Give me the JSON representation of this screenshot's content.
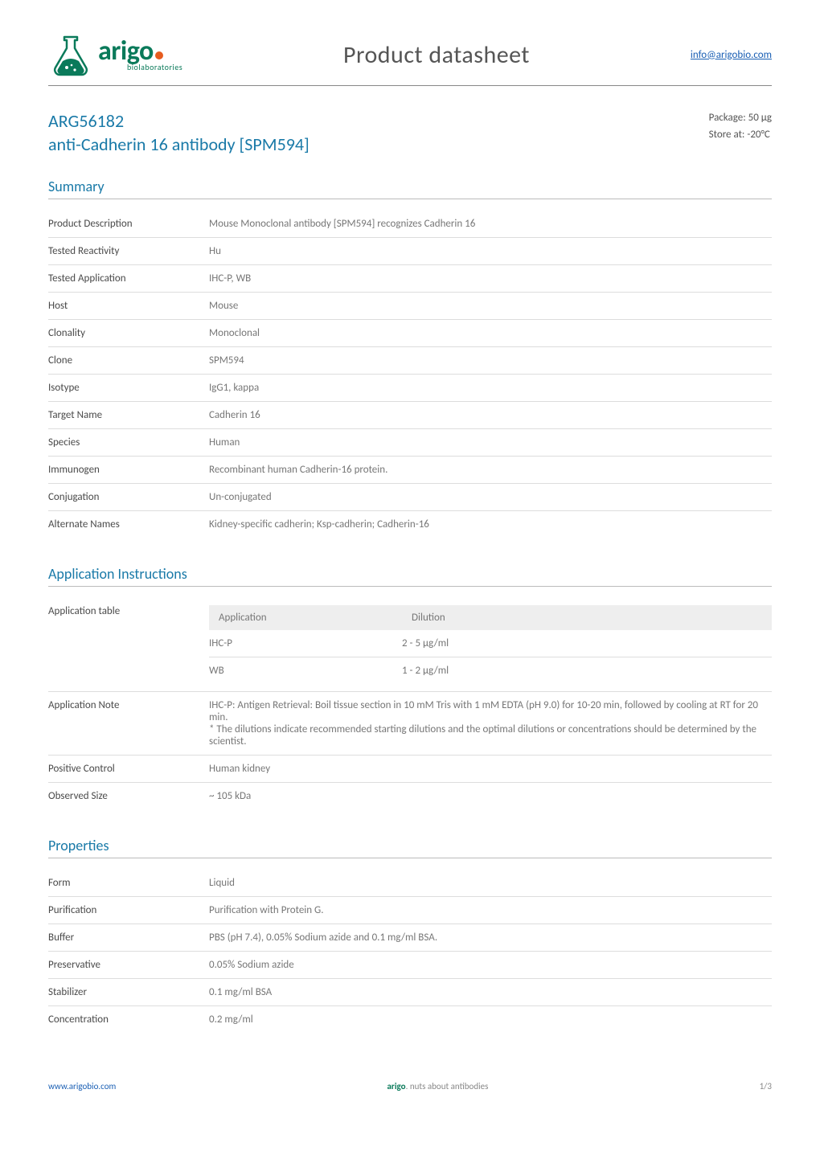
{
  "brand": {
    "name": "arigo",
    "sub": "biolaboratories",
    "logo_dot_color": "#e65c1f",
    "primary_color": "#0a7a5a"
  },
  "header": {
    "datasheet_title": "Product datasheet",
    "info_link": "info@arigobio.com"
  },
  "product": {
    "code": "ARG56182",
    "name": "anti-Cadherin 16 antibody [SPM594]",
    "package": "Package: 50 μg",
    "storage": "Store at: -20°C"
  },
  "sections": {
    "summary": {
      "heading": "Summary",
      "rows": [
        {
          "key": "Product Description",
          "val": "Mouse Monoclonal antibody [SPM594] recognizes Cadherin 16"
        },
        {
          "key": "Tested Reactivity",
          "val": "Hu"
        },
        {
          "key": "Tested Application",
          "val": "IHC-P, WB"
        },
        {
          "key": "Host",
          "val": "Mouse"
        },
        {
          "key": "Clonality",
          "val": "Monoclonal"
        },
        {
          "key": "Clone",
          "val": "SPM594"
        },
        {
          "key": "Isotype",
          "val": "IgG1, kappa"
        },
        {
          "key": "Target Name",
          "val": "Cadherin 16"
        },
        {
          "key": "Species",
          "val": "Human"
        },
        {
          "key": "Immunogen",
          "val": "Recombinant human Cadherin-16 protein."
        },
        {
          "key": "Conjugation",
          "val": "Un-conjugated"
        },
        {
          "key": "Alternate Names",
          "val": "Kidney-specific cadherin; Ksp-cadherin; Cadherin-16"
        }
      ]
    },
    "app_instructions": {
      "heading": "Application Instructions",
      "app_table": {
        "columns": [
          "Application",
          "Dilution"
        ],
        "rows": [
          [
            "IHC-P",
            "2 - 5 μg/ml"
          ],
          [
            "WB",
            "1 - 2 μg/ml"
          ]
        ],
        "col_widths": [
          "240px",
          "auto"
        ],
        "header_bg": "#eeeeee"
      },
      "rows": [
        {
          "key": "Application table",
          "type": "apptable"
        },
        {
          "key": "Application Note",
          "val": "IHC-P: Antigen Retrieval: Boil tissue section in 10 mM Tris with 1 mM EDTA (pH 9.0) for 10-20 min, followed by cooling at RT for 20 min.\n* The dilutions indicate recommended starting dilutions and the optimal dilutions or concentrations should be determined by the scientist."
        },
        {
          "key": "Positive Control",
          "val": "Human kidney"
        },
        {
          "key": "Observed Size",
          "val": "~ 105 kDa"
        }
      ]
    },
    "properties": {
      "heading": "Properties",
      "rows": [
        {
          "key": "Form",
          "val": "Liquid"
        },
        {
          "key": "Purification",
          "val": "Purification with Protein G."
        },
        {
          "key": "Buffer",
          "val": "PBS (pH 7.4), 0.05% Sodium azide and 0.1 mg/ml BSA."
        },
        {
          "key": "Preservative",
          "val": "0.05% Sodium azide"
        },
        {
          "key": "Stabilizer",
          "val": "0.1 mg/ml BSA"
        },
        {
          "key": "Concentration",
          "val": "0.2 mg/ml"
        }
      ]
    }
  },
  "footer": {
    "left": "www.arigobio.com",
    "center_brand": "arigo",
    "center_text": ". nuts about antibodies",
    "right": "1/3"
  },
  "colors": {
    "heading": "#1a7aa8",
    "link": "#1a5fb4",
    "text": "#4a4a4a",
    "muted": "#777777",
    "rule": "#bbbbbb",
    "row_divider": "#dddddd"
  }
}
